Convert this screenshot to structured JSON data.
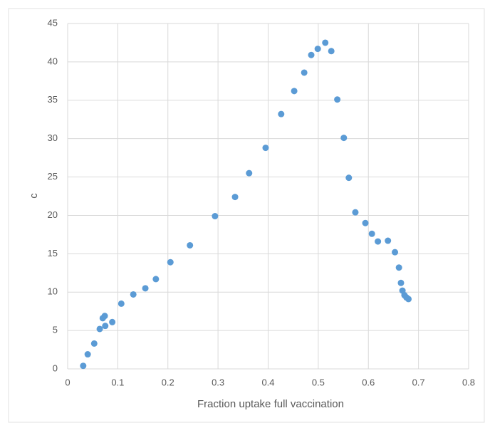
{
  "chart_data": {
    "type": "scatter",
    "x_label": "Fraction uptake full vaccination",
    "y_label": "c",
    "series": [
      {
        "color": "#5b9bd5",
        "x": [
          0.031,
          0.04,
          0.053,
          0.064,
          0.07,
          0.074,
          0.075,
          0.089,
          0.107,
          0.131,
          0.155,
          0.176,
          0.205,
          0.244,
          0.294,
          0.334,
          0.362,
          0.395,
          0.426,
          0.452,
          0.472,
          0.486,
          0.499,
          0.514,
          0.526,
          0.538,
          0.551,
          0.561,
          0.574,
          0.594,
          0.607,
          0.619,
          0.639,
          0.653,
          0.661,
          0.665,
          0.668,
          0.672,
          0.676,
          0.68
        ],
        "values": [
          0.4,
          1.9,
          3.3,
          5.2,
          6.6,
          6.9,
          5.6,
          6.1,
          8.5,
          9.7,
          10.5,
          11.7,
          13.9,
          16.1,
          19.9,
          22.4,
          25.5,
          28.8,
          33.2,
          36.2,
          38.6,
          40.9,
          41.7,
          42.5,
          41.4,
          35.1,
          30.1,
          24.9,
          20.4,
          19.0,
          17.6,
          16.6,
          16.7,
          15.2,
          13.2,
          11.2,
          10.2,
          9.6,
          9.3,
          9.1
        ]
      }
    ],
    "xlim": [
      0,
      0.8
    ],
    "xticks": [
      0,
      0.1,
      0.2,
      0.3,
      0.4,
      0.5,
      0.6,
      0.7,
      0.8
    ],
    "ylim": [
      0,
      45
    ],
    "yticks": [
      0,
      5,
      10,
      15,
      20,
      25,
      30,
      35,
      40,
      45
    ],
    "grid": true
  }
}
